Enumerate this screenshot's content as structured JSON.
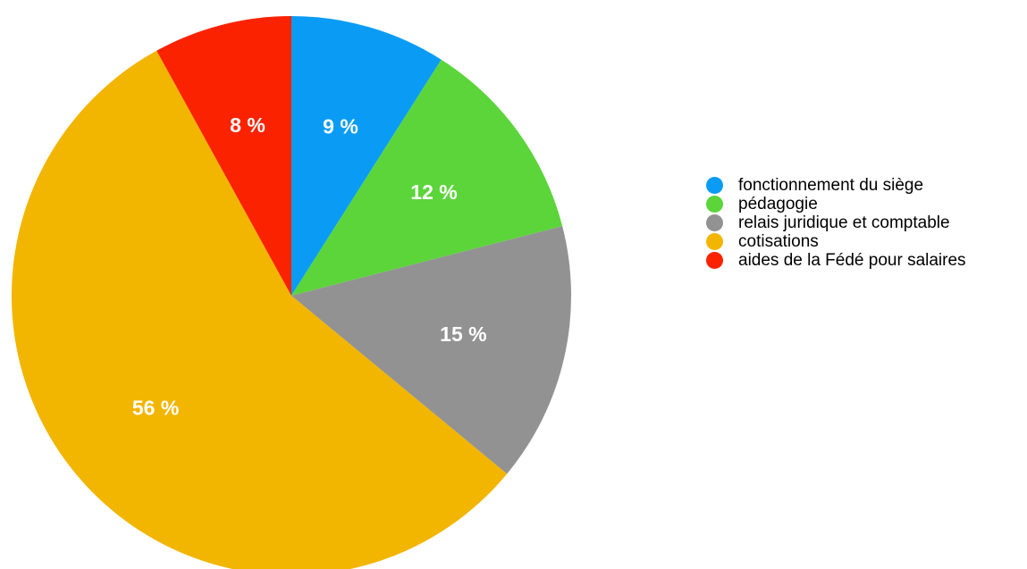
{
  "chart_data": {
    "type": "pie",
    "title": "",
    "start_angle_deg": 0,
    "direction": "clockwise",
    "legend_position": "right",
    "slices": [
      {
        "label": "fonctionnement du siège",
        "value": 9,
        "display": "9 %",
        "color": "#0a9cf5"
      },
      {
        "label": "pédagogie",
        "value": 12,
        "display": "12 %",
        "color": "#5bd53a"
      },
      {
        "label": "relais juridique et comptable",
        "value": 15,
        "display": "15 %",
        "color": "#929292"
      },
      {
        "label": "cotisations",
        "value": 56,
        "display": "56 %",
        "color": "#f2b500"
      },
      {
        "label": "aides de la Fédé pour salaires",
        "value": 8,
        "display": "8 %",
        "color": "#fb2200"
      }
    ]
  }
}
